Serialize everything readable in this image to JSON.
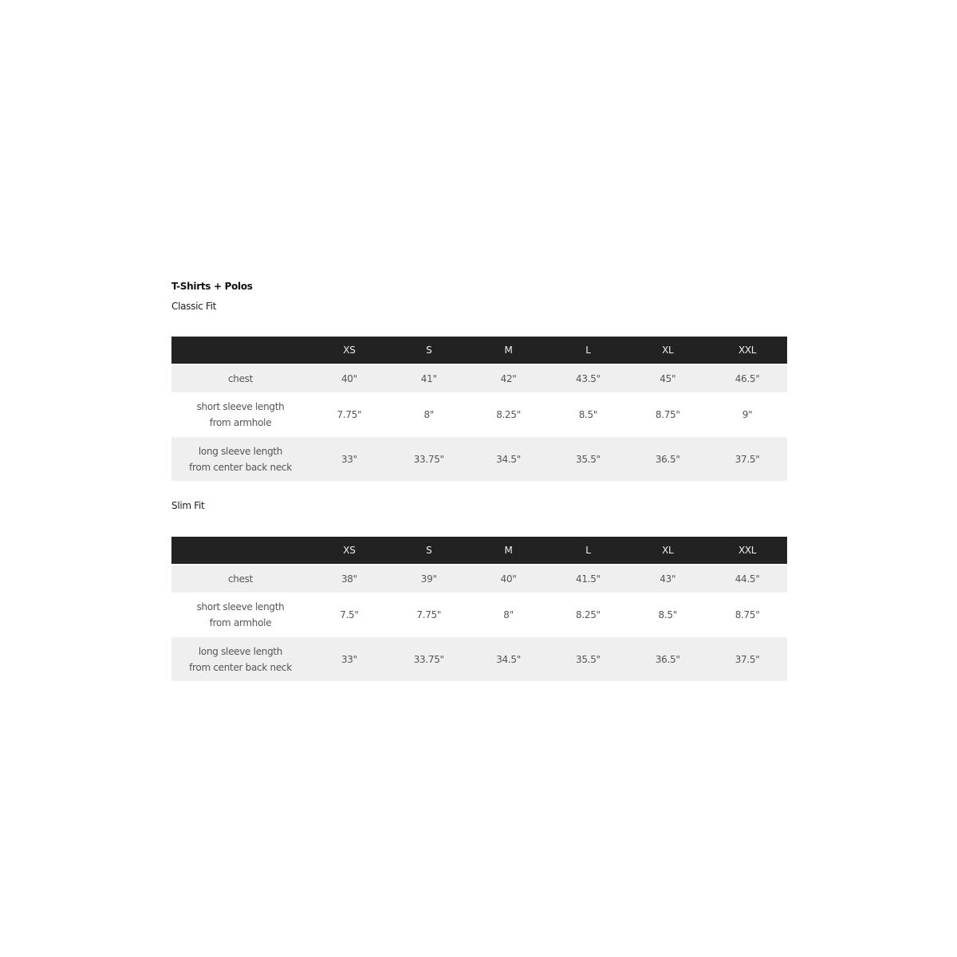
{
  "title": "T-Shirts + Polos",
  "sizes": [
    "XS",
    "S",
    "M",
    "L",
    "XL",
    "XXL"
  ],
  "tables": [
    {
      "name": "Classic Fit",
      "rows": [
        {
          "label": [
            "chest"
          ],
          "values": [
            "40\"",
            "41\"",
            "42\"",
            "43.5\"",
            "45\"",
            "46.5\""
          ]
        },
        {
          "label": [
            "short sleeve length",
            "from armhole"
          ],
          "values": [
            "7.75\"",
            "8\"",
            "8.25\"",
            "8.5\"",
            "8.75\"",
            "9\""
          ]
        },
        {
          "label": [
            "long sleeve length",
            "from center back neck"
          ],
          "values": [
            "33\"",
            "33.75\"",
            "34.5\"",
            "35.5\"",
            "36.5\"",
            "37.5\""
          ]
        }
      ]
    },
    {
      "name": "Slim Fit",
      "rows": [
        {
          "label": [
            "chest"
          ],
          "values": [
            "38\"",
            "39\"",
            "40\"",
            "41.5\"",
            "43\"",
            "44.5\""
          ]
        },
        {
          "label": [
            "short sleeve length",
            "from armhole"
          ],
          "values": [
            "7.5\"",
            "7.75\"",
            "8\"",
            "8.25\"",
            "8.5\"",
            "8.75\""
          ]
        },
        {
          "label": [
            "long sleeve length",
            "from center back neck"
          ],
          "values": [
            "33\"",
            "33.75\"",
            "34.5\"",
            "35.5\"",
            "36.5\"",
            "37.5\""
          ]
        }
      ]
    }
  ],
  "colors": {
    "header_bg": "#222222",
    "stripe_bg": "#efefef"
  }
}
